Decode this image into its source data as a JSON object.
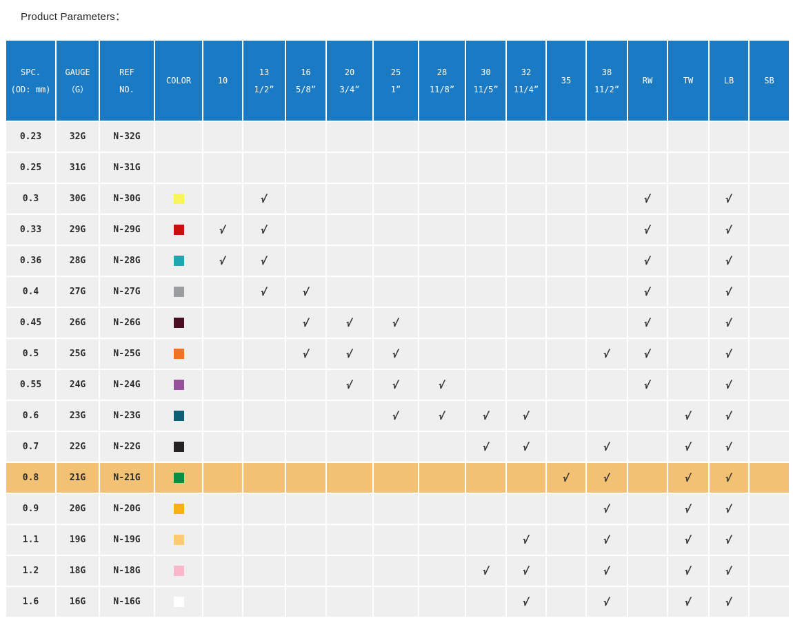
{
  "title": "Product Parameters：",
  "table": {
    "header_bg": "#1B7AC4",
    "row_bg": "#F0EFEF",
    "highlight_color": "#F3C174",
    "check_mark": "√",
    "columns": [
      {
        "key": "spc",
        "label": "SPC.",
        "sub": "(OD: mm)"
      },
      {
        "key": "gauge",
        "label": "GAUGE",
        "sub": "（G）"
      },
      {
        "key": "ref",
        "label": "REF",
        "sub": "NO."
      },
      {
        "key": "color",
        "label": "COLOR",
        "sub": ""
      },
      {
        "key": "c10",
        "label": "10",
        "sub": ""
      },
      {
        "key": "c13",
        "label": "13",
        "sub": "1/2”"
      },
      {
        "key": "c16",
        "label": "16",
        "sub": "5/8”"
      },
      {
        "key": "c20",
        "label": "20",
        "sub": "3/4”"
      },
      {
        "key": "c25",
        "label": "25",
        "sub": "1”"
      },
      {
        "key": "c28",
        "label": "28",
        "sub": "11/8”"
      },
      {
        "key": "c30",
        "label": "30",
        "sub": "11/5”"
      },
      {
        "key": "c32",
        "label": "32",
        "sub": "11/4”"
      },
      {
        "key": "c35",
        "label": "35",
        "sub": ""
      },
      {
        "key": "c38",
        "label": "38",
        "sub": "11/2”"
      },
      {
        "key": "rw",
        "label": "RW",
        "sub": ""
      },
      {
        "key": "tw",
        "label": "TW",
        "sub": ""
      },
      {
        "key": "lb",
        "label": "LB",
        "sub": ""
      },
      {
        "key": "sb",
        "label": "SB",
        "sub": ""
      }
    ],
    "check_columns": [
      "c10",
      "c13",
      "c16",
      "c20",
      "c25",
      "c28",
      "c30",
      "c32",
      "c35",
      "c38",
      "rw",
      "tw",
      "lb",
      "sb"
    ],
    "rows": [
      {
        "spc": "0.23",
        "gauge": "32G",
        "ref": "N-32G",
        "color": null,
        "checks": [],
        "highlight": false
      },
      {
        "spc": "0.25",
        "gauge": "31G",
        "ref": "N-31G",
        "color": null,
        "checks": [],
        "highlight": false
      },
      {
        "spc": "0.3",
        "gauge": "30G",
        "ref": "N-30G",
        "color": "#F8F55C",
        "checks": [
          "c13",
          "rw",
          "lb"
        ],
        "highlight": false
      },
      {
        "spc": "0.33",
        "gauge": "29G",
        "ref": "N-29G",
        "color": "#C8100F",
        "checks": [
          "c10",
          "c13",
          "rw",
          "lb"
        ],
        "highlight": false
      },
      {
        "spc": "0.36",
        "gauge": "28G",
        "ref": "N-28G",
        "color": "#1FA7B0",
        "checks": [
          "c10",
          "c13",
          "rw",
          "lb"
        ],
        "highlight": false
      },
      {
        "spc": "0.4",
        "gauge": "27G",
        "ref": "N-27G",
        "color": "#9B9DA0",
        "checks": [
          "c13",
          "c16",
          "rw",
          "lb"
        ],
        "highlight": false
      },
      {
        "spc": "0.45",
        "gauge": "26G",
        "ref": "N-26G",
        "color": "#4A0E22",
        "checks": [
          "c16",
          "c20",
          "c25",
          "rw",
          "lb"
        ],
        "highlight": false
      },
      {
        "spc": "0.5",
        "gauge": "25G",
        "ref": "N-25G",
        "color": "#EF7322",
        "checks": [
          "c16",
          "c20",
          "c25",
          "c38",
          "rw",
          "lb"
        ],
        "highlight": false
      },
      {
        "spc": "0.55",
        "gauge": "24G",
        "ref": "N-24G",
        "color": "#96519B",
        "checks": [
          "c20",
          "c25",
          "c28",
          "rw",
          "lb"
        ],
        "highlight": false
      },
      {
        "spc": "0.6",
        "gauge": "23G",
        "ref": "N-23G",
        "color": "#0E5F76",
        "checks": [
          "c25",
          "c28",
          "c30",
          "c32",
          "tw",
          "lb"
        ],
        "highlight": false
      },
      {
        "spc": "0.7",
        "gauge": "22G",
        "ref": "N-22G",
        "color": "#262223",
        "checks": [
          "c30",
          "c32",
          "c38",
          "tw",
          "lb"
        ],
        "highlight": false
      },
      {
        "spc": "0.8",
        "gauge": "21G",
        "ref": "N-21G",
        "color": "#0A8B46",
        "checks": [
          "c35",
          "c38",
          "tw",
          "lb"
        ],
        "highlight": true
      },
      {
        "spc": "0.9",
        "gauge": "20G",
        "ref": "N-20G",
        "color": "#FAAF14",
        "checks": [
          "c38",
          "tw",
          "lb"
        ],
        "highlight": false
      },
      {
        "spc": "1.1",
        "gauge": "19G",
        "ref": "N-19G",
        "color": "#FCCA73",
        "checks": [
          "c32",
          "c38",
          "tw",
          "lb"
        ],
        "highlight": false
      },
      {
        "spc": "1.2",
        "gauge": "18G",
        "ref": "N-18G",
        "color": "#F9B7CB",
        "checks": [
          "c30",
          "c32",
          "c38",
          "tw",
          "lb"
        ],
        "highlight": false
      },
      {
        "spc": "1.6",
        "gauge": "16G",
        "ref": "N-16G",
        "color": "#FFFFFF",
        "checks": [
          "c32",
          "c38",
          "tw",
          "lb"
        ],
        "highlight": false
      }
    ]
  }
}
